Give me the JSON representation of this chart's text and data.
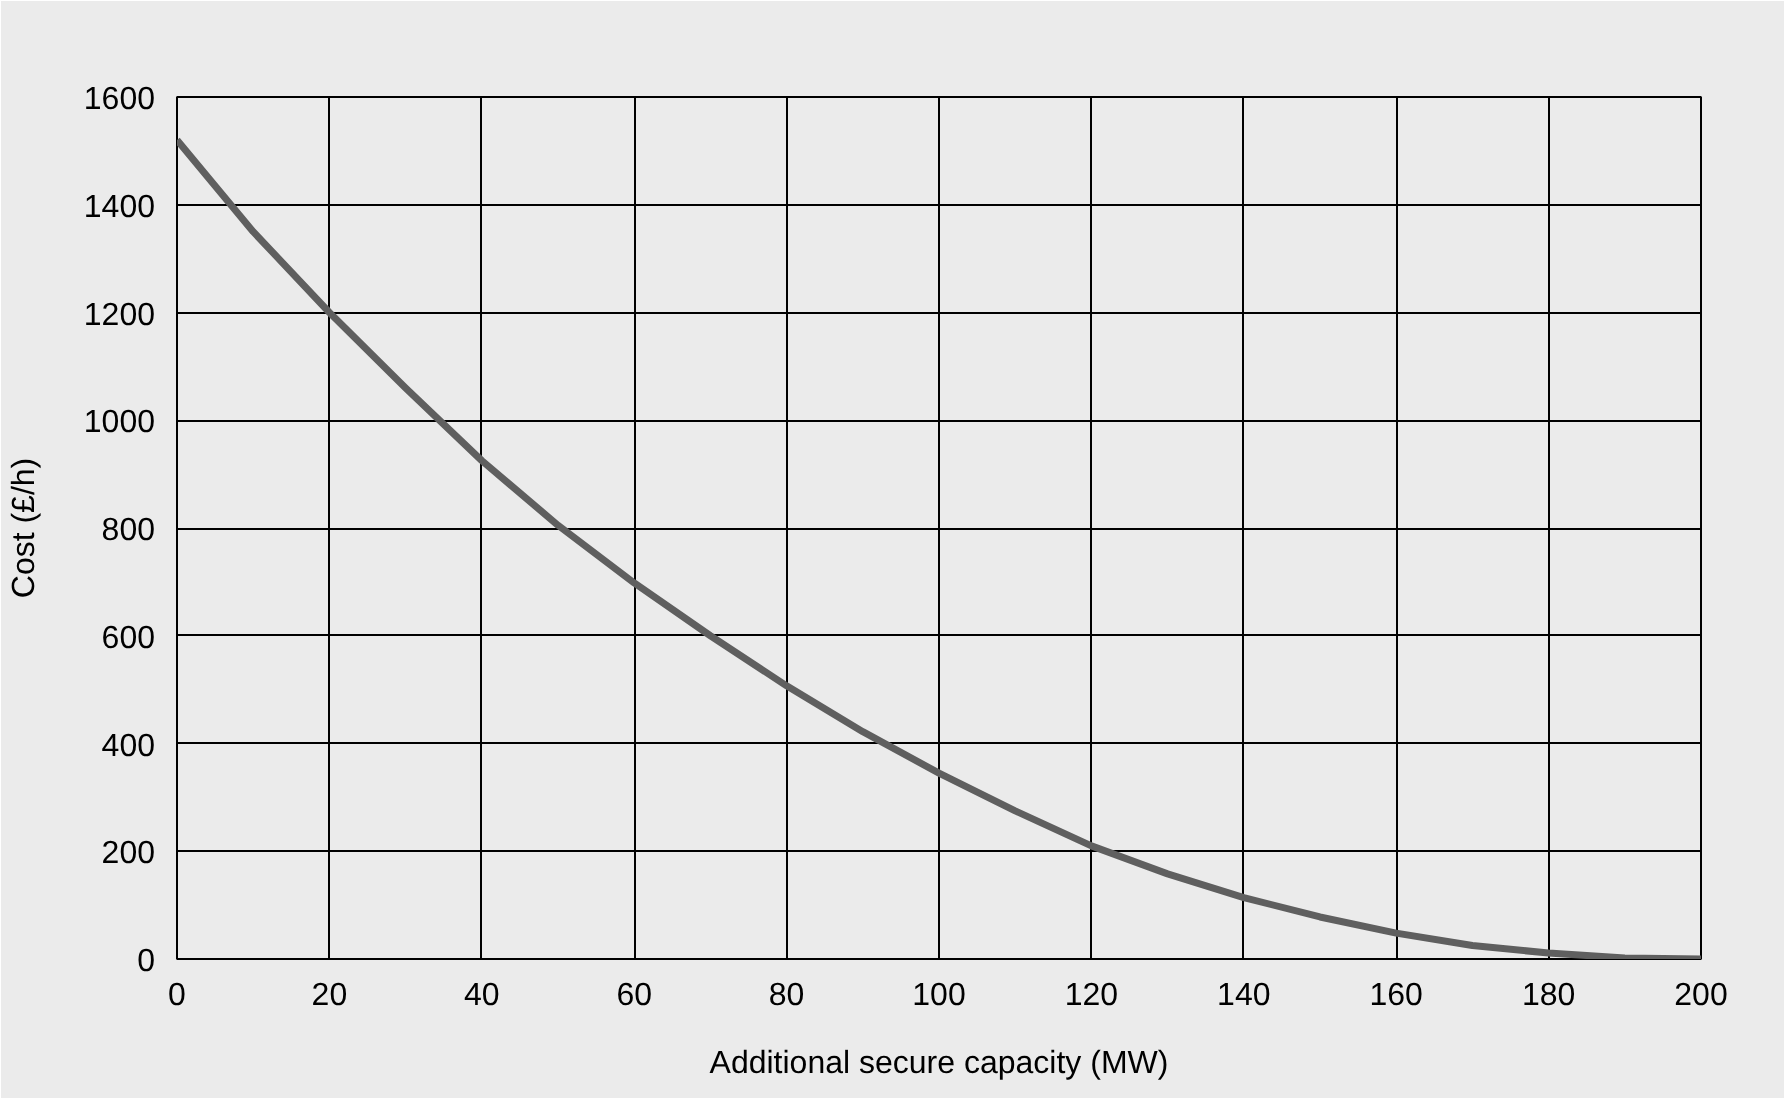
{
  "chart_data": {
    "type": "line",
    "xlabel": "Additional secure capacity (MW)",
    "ylabel": "Cost (£/h)",
    "x": [
      0,
      10,
      20,
      30,
      40,
      50,
      60,
      70,
      80,
      90,
      100,
      110,
      120,
      130,
      140,
      150,
      160,
      170,
      180,
      190,
      200
    ],
    "series": [
      {
        "color": "#5f5f5f",
        "values": [
          1520,
          1350,
          1200,
          1060,
          925,
          805,
          698,
          600,
          507,
          422,
          345,
          275,
          210,
          158,
          114,
          78,
          48,
          25,
          11,
          2,
          0
        ]
      }
    ],
    "xlim": [
      0,
      200
    ],
    "ylim": [
      0,
      1600
    ],
    "xticks": [
      0,
      20,
      40,
      60,
      80,
      100,
      120,
      140,
      160,
      180,
      200
    ],
    "yticks": [
      0,
      200,
      400,
      600,
      800,
      1000,
      1200,
      1400,
      1600
    ],
    "grid": true,
    "marker": "none",
    "line_style": "solid"
  }
}
